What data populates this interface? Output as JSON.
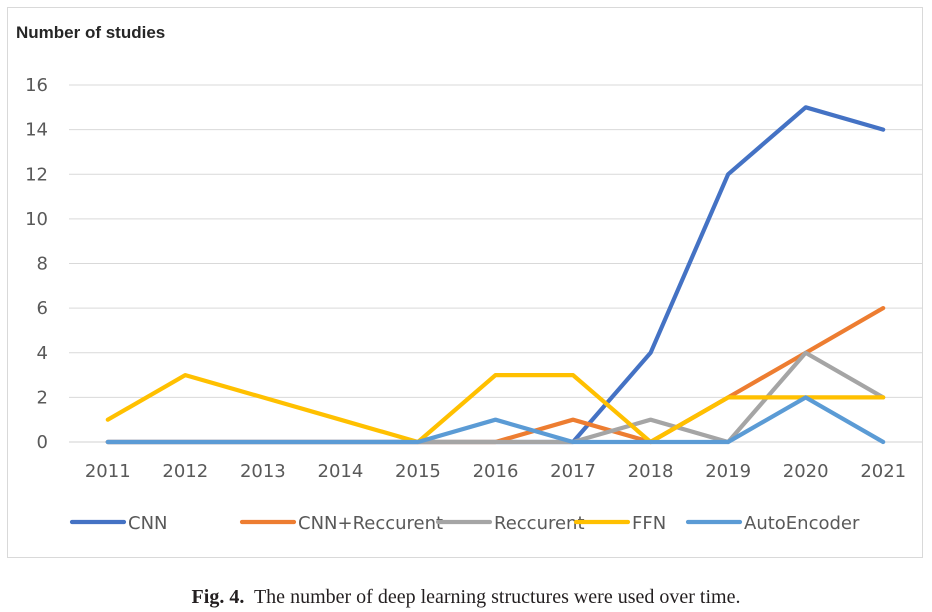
{
  "chart_data": {
    "type": "line",
    "ylabel": "Number of studies",
    "xlabel": "",
    "categories": [
      "2011",
      "2012",
      "2013",
      "2014",
      "2015",
      "2016",
      "2017",
      "2018",
      "2019",
      "2020",
      "2021"
    ],
    "ylim": [
      0,
      16
    ],
    "yticks": [
      0,
      2,
      4,
      6,
      8,
      10,
      12,
      14,
      16
    ],
    "grid": true,
    "legend_position": "bottom",
    "series": [
      {
        "name": "CNN",
        "color": "#4472c4",
        "values": [
          0,
          0,
          0,
          0,
          0,
          0,
          0,
          4,
          12,
          15,
          14
        ]
      },
      {
        "name": "CNN+Reccurent",
        "color": "#ed7d31",
        "values": [
          0,
          0,
          0,
          0,
          0,
          0,
          1,
          0,
          2,
          4,
          6
        ]
      },
      {
        "name": "Reccurent",
        "color": "#a5a5a5",
        "values": [
          0,
          0,
          0,
          0,
          0,
          0,
          0,
          1,
          0,
          4,
          2
        ]
      },
      {
        "name": "FFN",
        "color": "#ffc000",
        "values": [
          1,
          3,
          2,
          1,
          0,
          3,
          3,
          0,
          2,
          2,
          2
        ]
      },
      {
        "name": "AutoEncoder",
        "color": "#5b9bd5",
        "values": [
          0,
          0,
          0,
          0,
          0,
          1,
          0,
          0,
          0,
          2,
          0
        ]
      }
    ]
  },
  "caption": {
    "label": "Fig. 4.",
    "text": "The number of deep learning structures were used over time."
  }
}
